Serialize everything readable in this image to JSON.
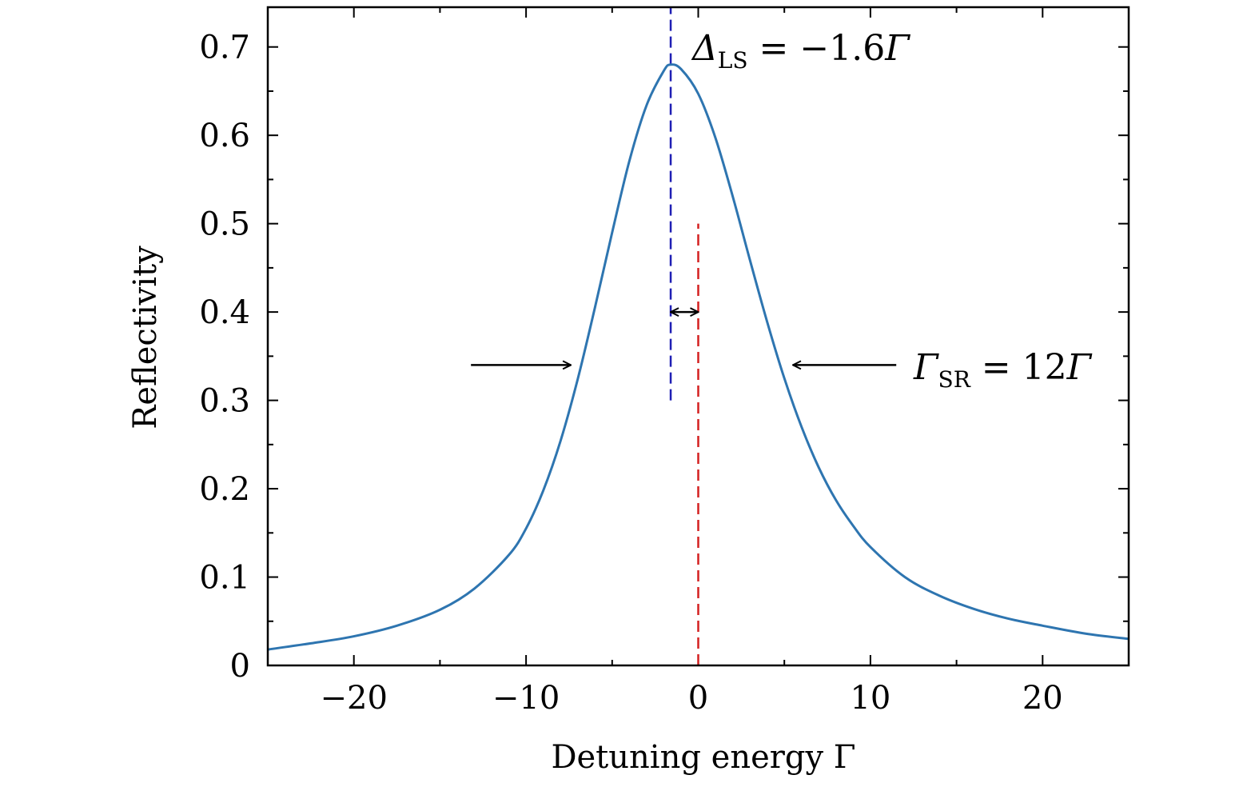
{
  "chart_data": {
    "type": "line",
    "xlabel": "Detuning energy Γ",
    "ylabel": "Reflectivity",
    "xlim": [
      -25,
      25
    ],
    "ylim": [
      0,
      0.745
    ],
    "x_ticks": [
      -20,
      -10,
      0,
      10,
      20
    ],
    "x_tick_labels": [
      "−20",
      "−10",
      "0",
      "10",
      "20"
    ],
    "x_minor_step": 5,
    "y_ticks": [
      0,
      0.1,
      0.2,
      0.3,
      0.4,
      0.5,
      0.6,
      0.7
    ],
    "y_tick_labels": [
      "0",
      "0.1",
      "0.2",
      "0.3",
      "0.4",
      "0.5",
      "0.6",
      "0.7"
    ],
    "y_minor_step": 0.05,
    "grid": false,
    "series": [
      {
        "color": "#2e75b0",
        "x": [
          -25,
          -22.5,
          -20,
          -17.5,
          -15,
          -13,
          -11,
          -10,
          -9,
          -8,
          -7,
          -6,
          -5,
          -4,
          -3,
          -2,
          -1.6,
          -1,
          0,
          1,
          2,
          3,
          4,
          5,
          6,
          7,
          8,
          9,
          10,
          12,
          14,
          16,
          18,
          20,
          22.5,
          25
        ],
        "y": [
          0.018,
          0.025,
          0.033,
          0.045,
          0.063,
          0.087,
          0.125,
          0.155,
          0.198,
          0.254,
          0.324,
          0.405,
          0.49,
          0.571,
          0.634,
          0.673,
          0.68,
          0.675,
          0.647,
          0.597,
          0.531,
          0.459,
          0.389,
          0.325,
          0.27,
          0.224,
          0.187,
          0.158,
          0.134,
          0.1,
          0.079,
          0.064,
          0.053,
          0.045,
          0.036,
          0.03
        ]
      }
    ],
    "vlines": [
      {
        "x": -1.6,
        "y_from": 0.3,
        "y_to": 0.745,
        "color": "#1f1fb4",
        "style": "dashed"
      },
      {
        "x": 0,
        "y_from": 0,
        "y_to": 0.5,
        "color": "#d42020",
        "style": "dashed"
      }
    ],
    "annotations": {
      "shift": {
        "text_symbol": "Δ",
        "text_sub": "LS",
        "text_rest": " = −1.6",
        "text_unit": "Γ"
      },
      "width": {
        "text_symbol": "Γ",
        "text_sub": "SR",
        "text_rest": " = 12",
        "text_unit": "Γ"
      }
    },
    "arrows": [
      {
        "from": [
          -13.2,
          0.34
        ],
        "to": [
          -7.4,
          0.34
        ],
        "heads": "end"
      },
      {
        "from": [
          11.5,
          0.34
        ],
        "to": [
          5.5,
          0.34
        ],
        "heads": "end"
      },
      {
        "from": [
          -1.6,
          0.4
        ],
        "to": [
          0,
          0.4
        ],
        "heads": "both"
      }
    ]
  }
}
